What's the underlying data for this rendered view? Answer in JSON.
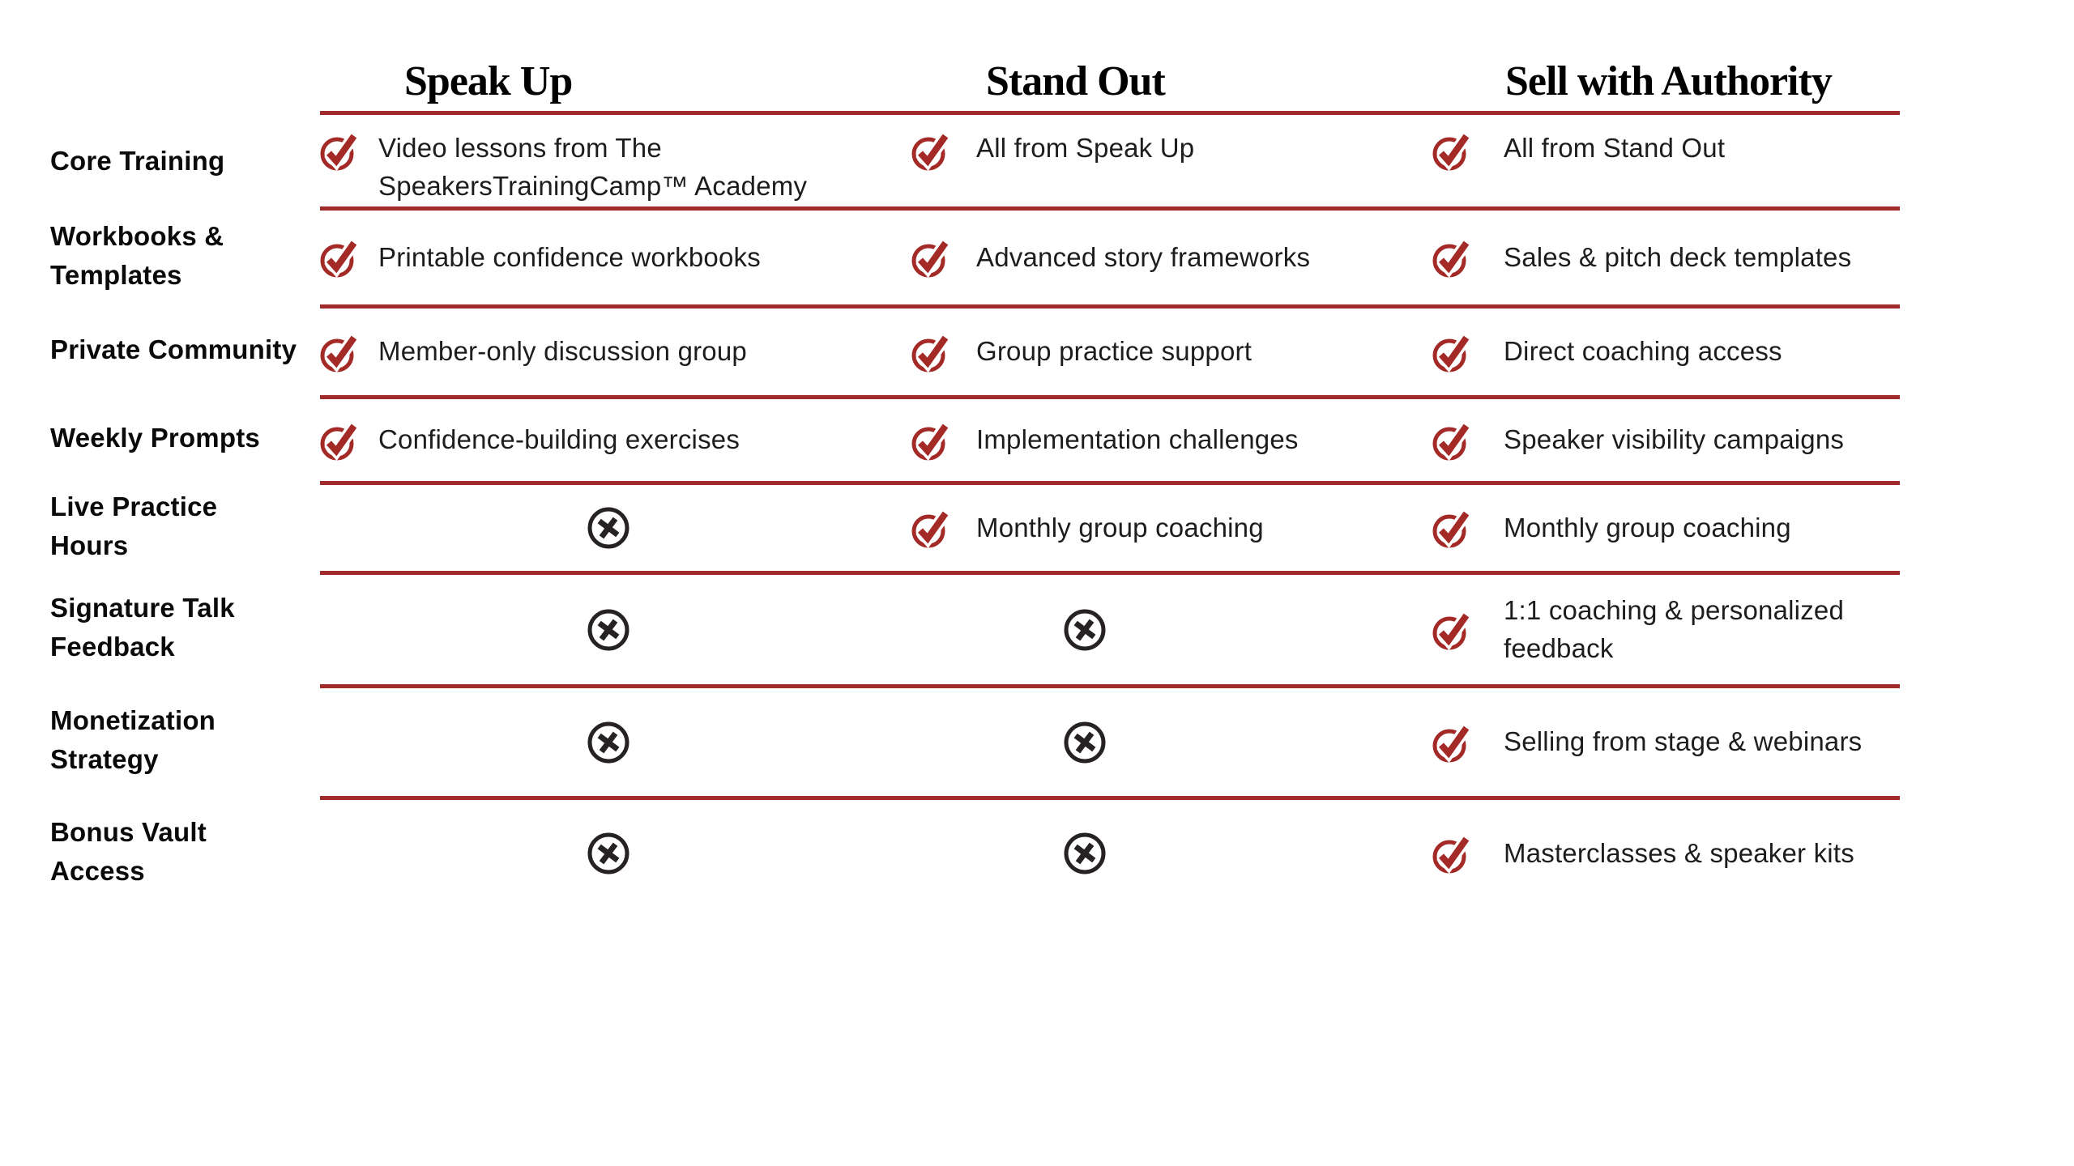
{
  "table": {
    "columns": [
      {
        "title": "Speak Up"
      },
      {
        "title": "Stand Out"
      },
      {
        "title": "Sell with Authority"
      }
    ],
    "rows": [
      {
        "label": "Core Training",
        "cells": [
          {
            "type": "check",
            "text": "Video lessons from The SpeakersTrainingCamp™ Academy"
          },
          {
            "type": "check",
            "text": "All from Speak Up"
          },
          {
            "type": "check",
            "text": "All from Stand Out"
          }
        ]
      },
      {
        "label": "Workbooks & Templates",
        "cells": [
          {
            "type": "check",
            "text": "Printable confidence workbooks"
          },
          {
            "type": "check",
            "text": "Advanced story frameworks"
          },
          {
            "type": "check",
            "text": "Sales & pitch deck templates"
          }
        ]
      },
      {
        "label": "Private Community",
        "cells": [
          {
            "type": "check",
            "text": "Member-only discussion group"
          },
          {
            "type": "check",
            "text": "Group practice support"
          },
          {
            "type": "check",
            "text": "Direct coaching access"
          }
        ]
      },
      {
        "label": "Weekly Prompts",
        "cells": [
          {
            "type": "check",
            "text": "Confidence-building exercises"
          },
          {
            "type": "check",
            "text": "Implementation challenges"
          },
          {
            "type": "check",
            "text": "Speaker visibility campaigns"
          }
        ]
      },
      {
        "label": "Live Practice Hours",
        "cells": [
          {
            "type": "cross",
            "text": ""
          },
          {
            "type": "check",
            "text": "Monthly group coaching"
          },
          {
            "type": "check",
            "text": "Monthly group coaching"
          }
        ]
      },
      {
        "label": "Signature Talk Feedback",
        "cells": [
          {
            "type": "cross",
            "text": ""
          },
          {
            "type": "cross",
            "text": ""
          },
          {
            "type": "check",
            "text": "1:1 coaching & personalized feedback"
          }
        ]
      },
      {
        "label": "Monetization Strategy",
        "cells": [
          {
            "type": "cross",
            "text": ""
          },
          {
            "type": "cross",
            "text": ""
          },
          {
            "type": "check",
            "text": "Selling from stage & webinars"
          }
        ]
      },
      {
        "label": "Bonus Vault Access",
        "cells": [
          {
            "type": "cross",
            "text": ""
          },
          {
            "type": "cross",
            "text": ""
          },
          {
            "type": "check",
            "text": "Masterclasses & speaker kits"
          }
        ]
      }
    ]
  },
  "colors": {
    "accent_red": "#A32A27",
    "line_red": "#A02B2B",
    "cross_dark": "#262223",
    "body_text": "#1D1D1B",
    "label_text": "#0A0A0A",
    "header_text": "#000000"
  },
  "icons": {
    "check": "check-circle-icon",
    "cross": "cross-circle-icon"
  }
}
